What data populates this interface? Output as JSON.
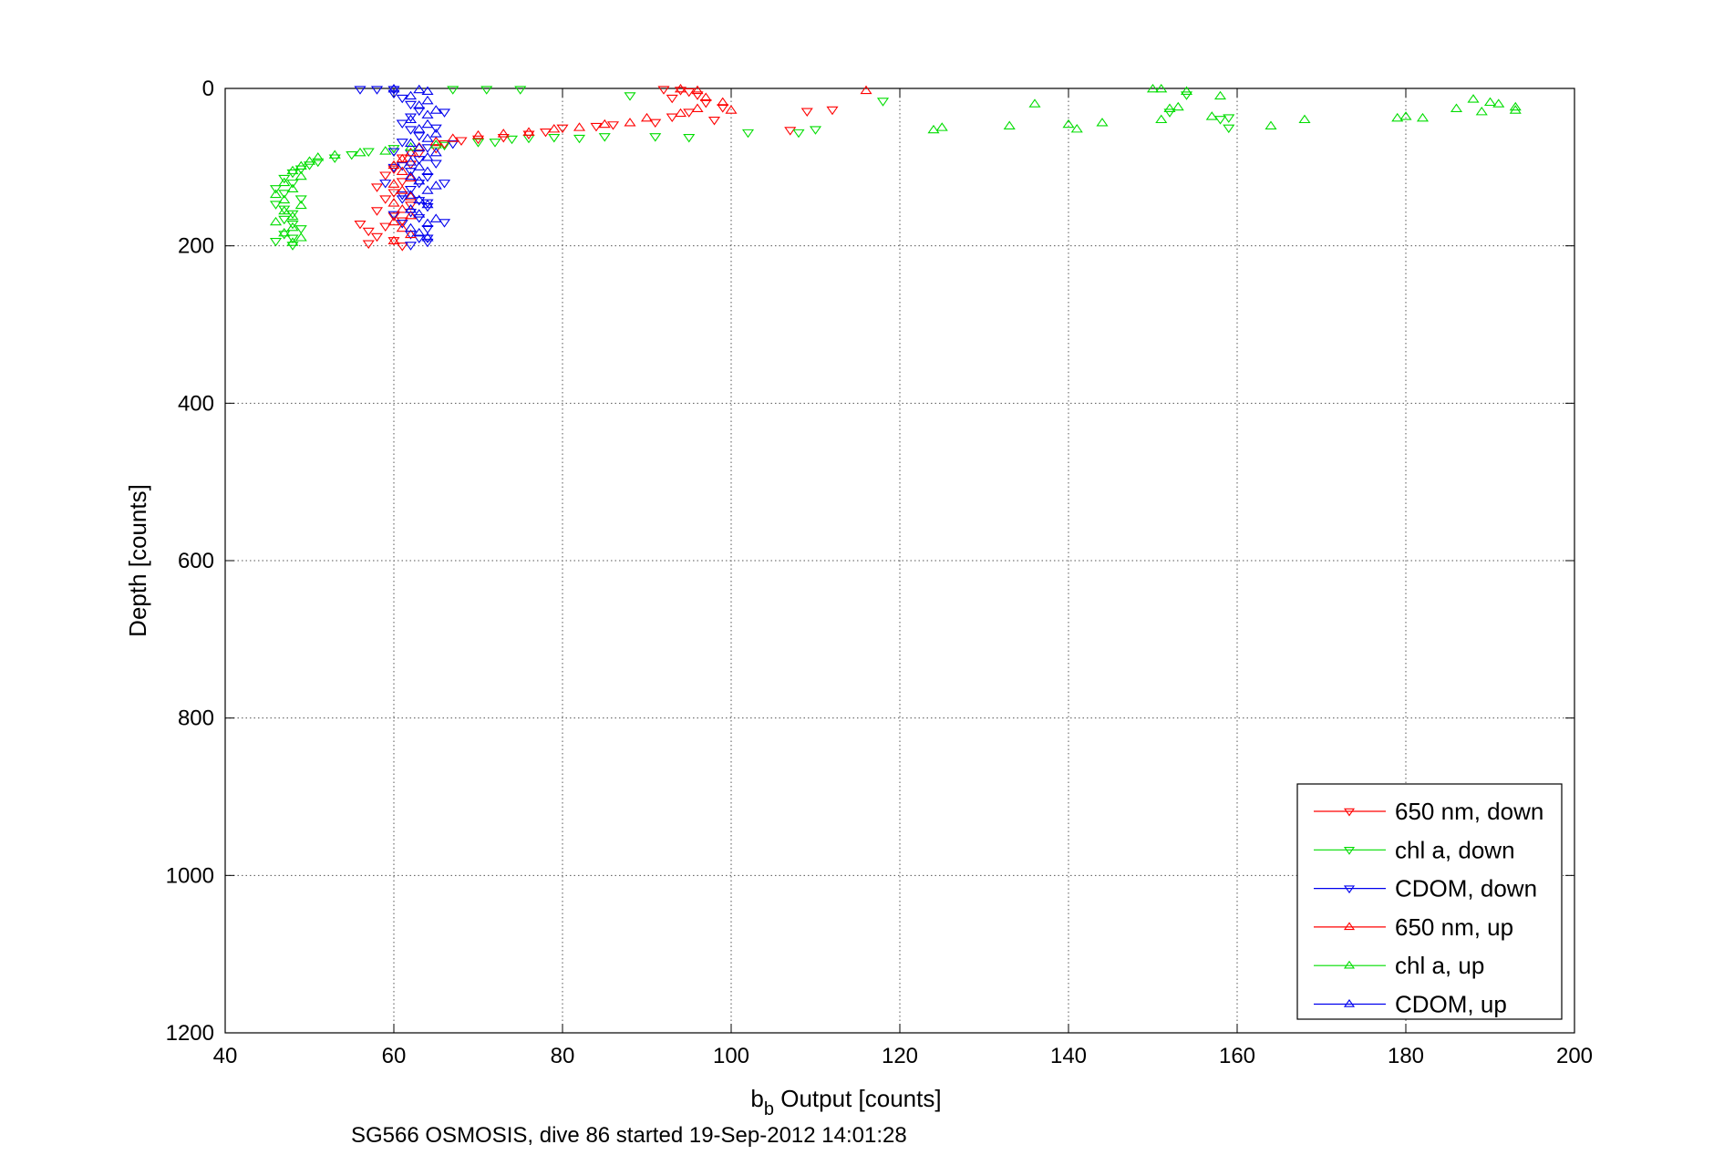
{
  "chart_data": {
    "type": "scatter",
    "xlabel": {
      "main": "b",
      "sub": "b",
      "rest": " Output [counts]"
    },
    "ylabel": "Depth [counts]",
    "caption": "SG566 OSMOSIS, dive 86 started 19-Sep-2012 14:01:28",
    "xlim": [
      40,
      200
    ],
    "ylim": [
      1200,
      0
    ],
    "y_reversed": true,
    "xticks": [
      "40",
      "60",
      "80",
      "100",
      "120",
      "140",
      "160",
      "180",
      "200"
    ],
    "yticks": [
      "0",
      "200",
      "400",
      "600",
      "800",
      "1000",
      "1200"
    ],
    "xtick_values": [
      40,
      60,
      80,
      100,
      120,
      140,
      160,
      180,
      200
    ],
    "ytick_values": [
      0,
      200,
      400,
      600,
      800,
      1000,
      1200
    ],
    "grid": true,
    "legend_position": "bottom-right",
    "series": [
      {
        "name": "650 nm, down",
        "color": "#ff0000",
        "marker": "triangle-down",
        "points": [
          [
            92,
            1
          ],
          [
            94,
            2
          ],
          [
            95,
            4
          ],
          [
            96,
            8
          ],
          [
            93,
            12
          ],
          [
            97,
            18
          ],
          [
            99,
            24
          ],
          [
            95,
            30
          ],
          [
            93,
            36
          ],
          [
            98,
            40
          ],
          [
            91,
            43
          ],
          [
            86,
            46
          ],
          [
            84,
            48
          ],
          [
            80,
            50
          ],
          [
            78,
            55
          ],
          [
            76,
            58
          ],
          [
            73,
            62
          ],
          [
            70,
            64
          ],
          [
            68,
            66
          ],
          [
            66,
            70
          ],
          [
            65,
            76
          ],
          [
            63,
            82
          ],
          [
            61,
            88
          ],
          [
            62,
            96
          ],
          [
            60,
            102
          ],
          [
            59,
            110
          ],
          [
            61,
            118
          ],
          [
            58,
            125
          ],
          [
            60,
            132
          ],
          [
            59,
            140
          ],
          [
            62,
            148
          ],
          [
            58,
            155
          ],
          [
            60,
            162
          ],
          [
            61,
            168
          ],
          [
            59,
            175
          ],
          [
            56,
            172
          ],
          [
            57,
            181
          ],
          [
            58,
            188
          ],
          [
            60,
            193
          ],
          [
            57,
            197
          ],
          [
            61,
            200
          ],
          [
            107,
            53
          ],
          [
            112,
            27
          ],
          [
            109,
            29
          ]
        ]
      },
      {
        "name": "chl a, down",
        "color": "#00dd00",
        "marker": "triangle-down",
        "points": [
          [
            67,
            1
          ],
          [
            71,
            1
          ],
          [
            75,
            1
          ],
          [
            88,
            9
          ],
          [
            91,
            61
          ],
          [
            95,
            62
          ],
          [
            102,
            56
          ],
          [
            85,
            61
          ],
          [
            82,
            63
          ],
          [
            79,
            62
          ],
          [
            76,
            63
          ],
          [
            74,
            64
          ],
          [
            72,
            68
          ],
          [
            70,
            68
          ],
          [
            66,
            72
          ],
          [
            60,
            76
          ],
          [
            57,
            80
          ],
          [
            55,
            84
          ],
          [
            53,
            88
          ],
          [
            51,
            93
          ],
          [
            50,
            97
          ],
          [
            49,
            102
          ],
          [
            48,
            107
          ],
          [
            47,
            114
          ],
          [
            48,
            120
          ],
          [
            46,
            127
          ],
          [
            47,
            133
          ],
          [
            49,
            140
          ],
          [
            46,
            147
          ],
          [
            47,
            153
          ],
          [
            48,
            159
          ],
          [
            47,
            166
          ],
          [
            48,
            172
          ],
          [
            49,
            178
          ],
          [
            47,
            185
          ],
          [
            48,
            190
          ],
          [
            46,
            194
          ],
          [
            48,
            199
          ],
          [
            118,
            16
          ],
          [
            152,
            30
          ],
          [
            154,
            8
          ],
          [
            158,
            39
          ],
          [
            159,
            37
          ],
          [
            159,
            50
          ],
          [
            110,
            52
          ],
          [
            108,
            56
          ]
        ]
      },
      {
        "name": "CDOM, down",
        "color": "#0000ee",
        "marker": "triangle-down",
        "points": [
          [
            56,
            1
          ],
          [
            58,
            1
          ],
          [
            60,
            1
          ],
          [
            60,
            6
          ],
          [
            61,
            12
          ],
          [
            62,
            20
          ],
          [
            63,
            28
          ],
          [
            62,
            36
          ],
          [
            61,
            44
          ],
          [
            62,
            52
          ],
          [
            63,
            60
          ],
          [
            61,
            68
          ],
          [
            64,
            75
          ],
          [
            62,
            82
          ],
          [
            63,
            90
          ],
          [
            61,
            98
          ],
          [
            62,
            105
          ],
          [
            64,
            112
          ],
          [
            63,
            120
          ],
          [
            62,
            128
          ],
          [
            61,
            135
          ],
          [
            63,
            142
          ],
          [
            64,
            150
          ],
          [
            62,
            157
          ],
          [
            63,
            164
          ],
          [
            61,
            171
          ],
          [
            64,
            178
          ],
          [
            62,
            185
          ],
          [
            63,
            190
          ],
          [
            64,
            195
          ],
          [
            62,
            199
          ],
          [
            66,
            30
          ],
          [
            65,
            50
          ],
          [
            67,
            70
          ],
          [
            65,
            95
          ],
          [
            66,
            120
          ],
          [
            64,
            145
          ],
          [
            66,
            170
          ],
          [
            64,
            190
          ],
          [
            60,
            80
          ],
          [
            60,
            100
          ],
          [
            59,
            120
          ],
          [
            61,
            140
          ],
          [
            60,
            160
          ]
        ]
      },
      {
        "name": "650 nm, up",
        "color": "#ff0000",
        "marker": "triangle-up",
        "points": [
          [
            94,
            1
          ],
          [
            96,
            3
          ],
          [
            116,
            3
          ],
          [
            97,
            12
          ],
          [
            99,
            18
          ],
          [
            100,
            28
          ],
          [
            96,
            26
          ],
          [
            94,
            32
          ],
          [
            90,
            38
          ],
          [
            88,
            44
          ],
          [
            85,
            46
          ],
          [
            82,
            50
          ],
          [
            79,
            52
          ],
          [
            76,
            56
          ],
          [
            73,
            58
          ],
          [
            70,
            60
          ],
          [
            67,
            64
          ],
          [
            65,
            68
          ],
          [
            63,
            75
          ],
          [
            62,
            82
          ],
          [
            61,
            90
          ],
          [
            60,
            98
          ],
          [
            61,
            106
          ],
          [
            62,
            114
          ],
          [
            60,
            122
          ],
          [
            61,
            130
          ],
          [
            62,
            138
          ],
          [
            60,
            146
          ],
          [
            61,
            154
          ],
          [
            62,
            162
          ],
          [
            60,
            170
          ],
          [
            61,
            178
          ],
          [
            62,
            186
          ],
          [
            60,
            194
          ]
        ]
      },
      {
        "name": "chl a, up",
        "color": "#00dd00",
        "marker": "triangle-up",
        "points": [
          [
            150,
            1
          ],
          [
            151,
            1
          ],
          [
            154,
            4
          ],
          [
            158,
            10
          ],
          [
            153,
            24
          ],
          [
            152,
            26
          ],
          [
            157,
            36
          ],
          [
            151,
            40
          ],
          [
            136,
            20
          ],
          [
            140,
            46
          ],
          [
            141,
            52
          ],
          [
            144,
            44
          ],
          [
            133,
            48
          ],
          [
            125,
            50
          ],
          [
            124,
            53
          ],
          [
            164,
            48
          ],
          [
            168,
            40
          ],
          [
            179,
            38
          ],
          [
            180,
            36
          ],
          [
            182,
            38
          ],
          [
            186,
            26
          ],
          [
            188,
            14
          ],
          [
            189,
            30
          ],
          [
            190,
            18
          ],
          [
            191,
            20
          ],
          [
            193,
            24
          ],
          [
            193,
            28
          ],
          [
            65,
            72
          ],
          [
            62,
            75
          ],
          [
            59,
            80
          ],
          [
            56,
            82
          ],
          [
            53,
            85
          ],
          [
            51,
            88
          ],
          [
            50,
            93
          ],
          [
            49,
            99
          ],
          [
            48,
            105
          ],
          [
            49,
            112
          ],
          [
            47,
            120
          ],
          [
            48,
            128
          ],
          [
            46,
            135
          ],
          [
            47,
            142
          ],
          [
            49,
            149
          ],
          [
            47,
            156
          ],
          [
            48,
            163
          ],
          [
            46,
            170
          ],
          [
            48,
            177
          ],
          [
            47,
            184
          ],
          [
            49,
            190
          ],
          [
            48,
            196
          ]
        ]
      },
      {
        "name": "CDOM, up",
        "color": "#0000ee",
        "marker": "triangle-up",
        "points": [
          [
            60,
            1
          ],
          [
            63,
            2
          ],
          [
            64,
            4
          ],
          [
            62,
            10
          ],
          [
            64,
            16
          ],
          [
            63,
            22
          ],
          [
            65,
            28
          ],
          [
            64,
            34
          ],
          [
            62,
            40
          ],
          [
            64,
            46
          ],
          [
            63,
            52
          ],
          [
            65,
            58
          ],
          [
            64,
            64
          ],
          [
            62,
            70
          ],
          [
            63,
            76
          ],
          [
            65,
            82
          ],
          [
            64,
            88
          ],
          [
            62,
            94
          ],
          [
            63,
            100
          ],
          [
            64,
            106
          ],
          [
            62,
            112
          ],
          [
            63,
            118
          ],
          [
            65,
            124
          ],
          [
            64,
            130
          ],
          [
            62,
            136
          ],
          [
            63,
            142
          ],
          [
            64,
            148
          ],
          [
            62,
            154
          ],
          [
            63,
            160
          ],
          [
            65,
            166
          ],
          [
            64,
            172
          ],
          [
            62,
            178
          ],
          [
            63,
            184
          ],
          [
            64,
            190
          ]
        ]
      }
    ]
  }
}
